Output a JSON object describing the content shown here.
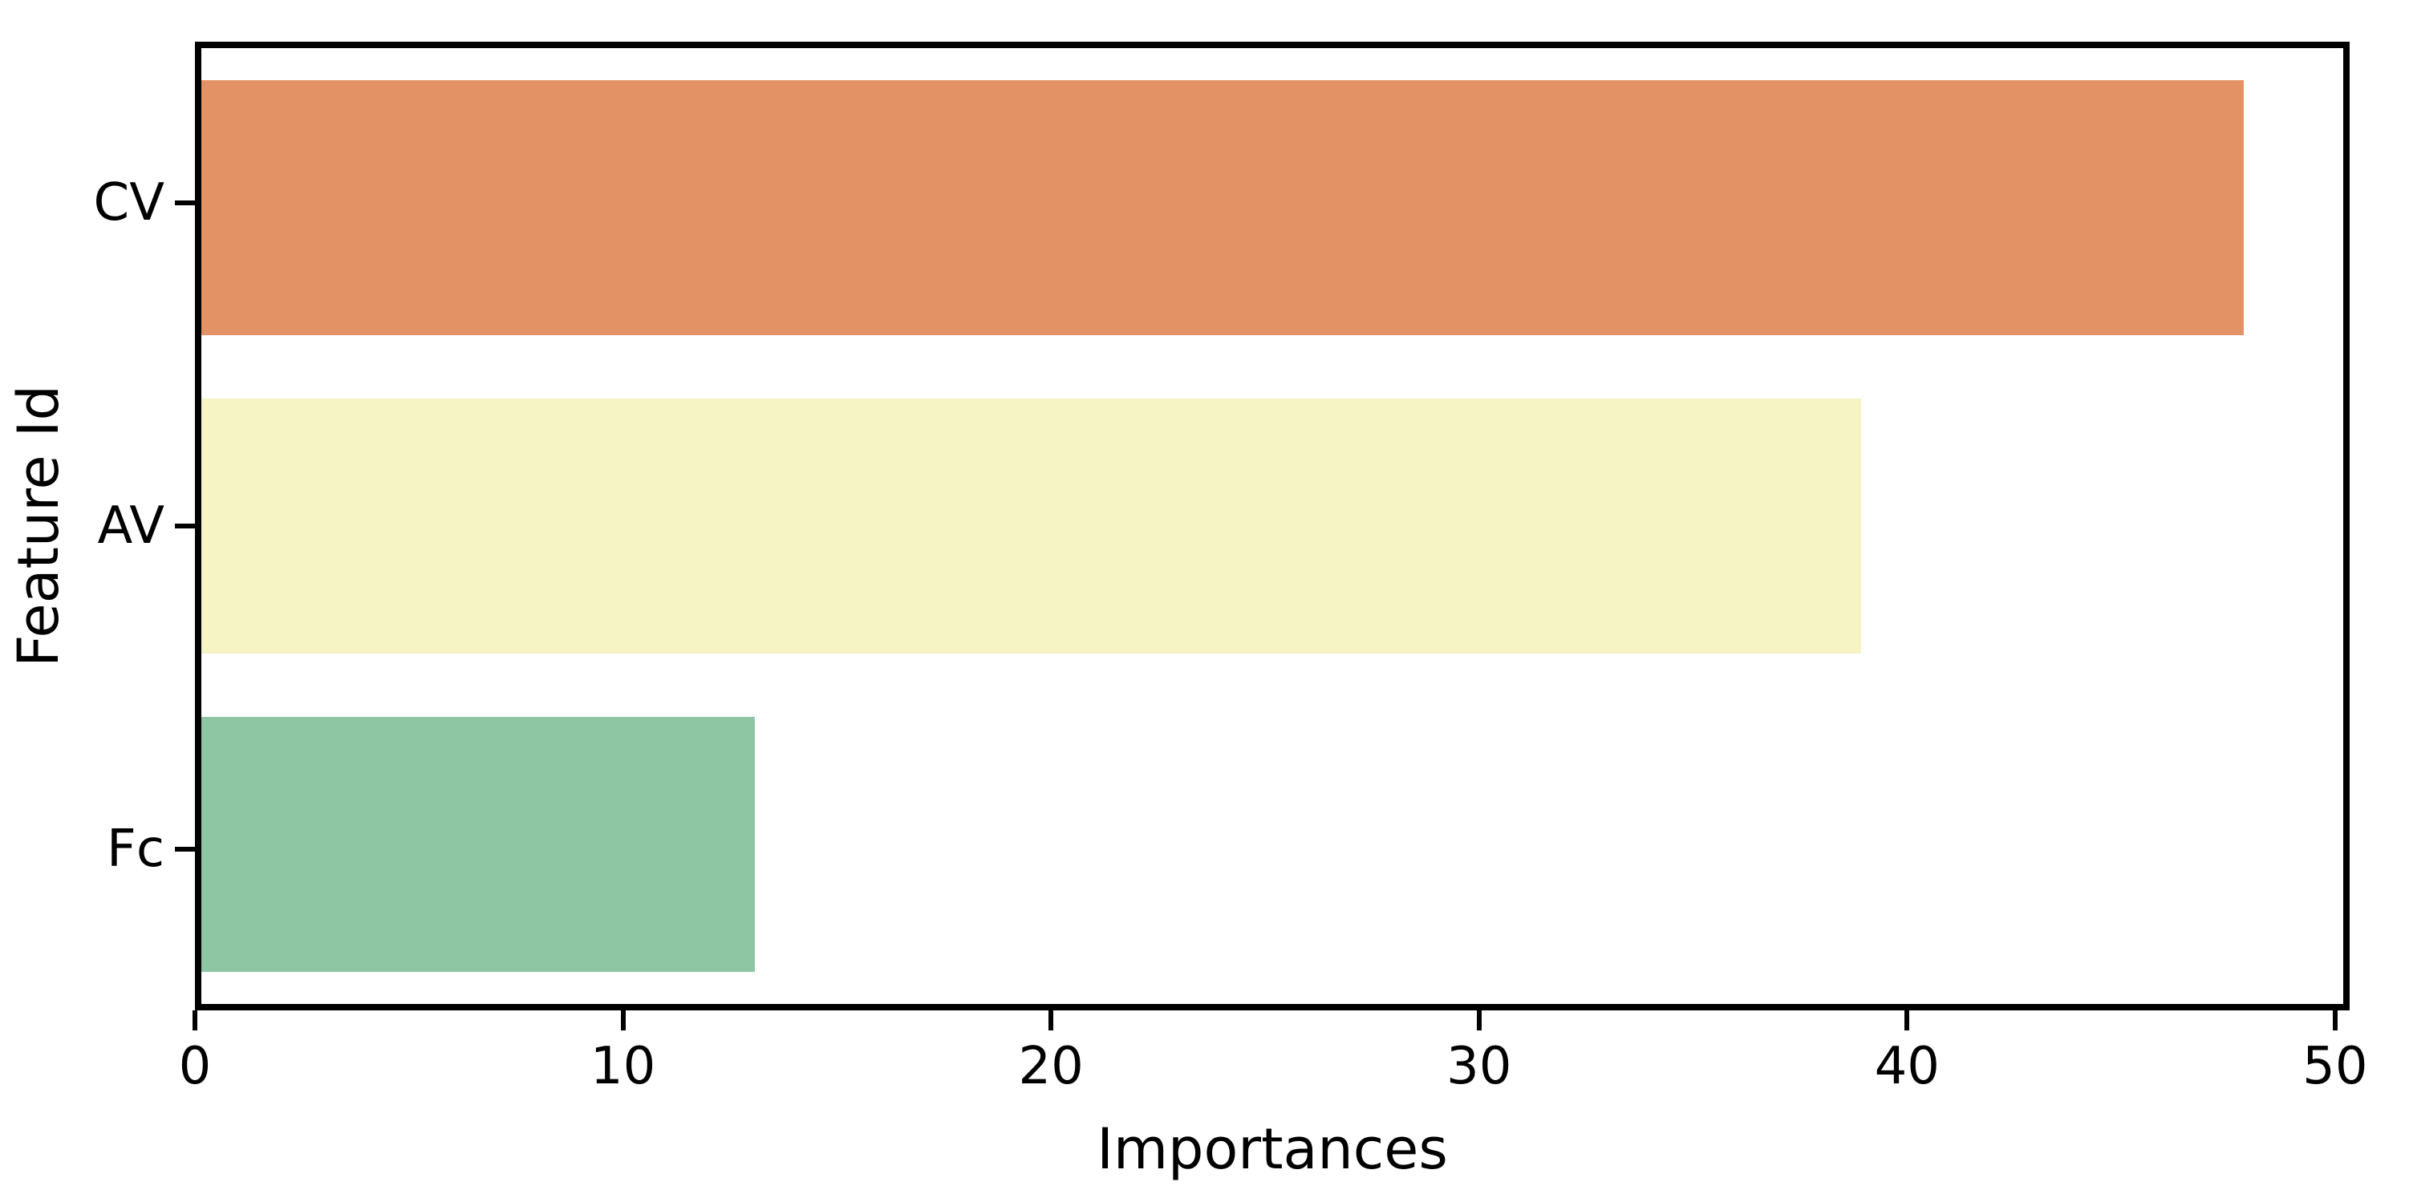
{
  "chart_data": {
    "type": "bar",
    "orientation": "horizontal",
    "title": "",
    "xlabel": "Importances",
    "ylabel": "Feature Id",
    "categories": [
      "CV",
      "AV",
      "Fc"
    ],
    "values": [
      48,
      39,
      13
    ],
    "bar_colors": [
      "#e39266",
      "#f6f4c4",
      "#8ec6a4"
    ],
    "x_ticks": [
      0,
      10,
      20,
      30,
      40,
      50
    ],
    "xlim": [
      0,
      50.34
    ],
    "bar_height_fraction": 0.8,
    "grid": false,
    "legend": "none"
  },
  "styles": {
    "background_color": "#ffffff",
    "spine_color": "#000000",
    "tick_color": "#000000",
    "text_color": "#000000"
  }
}
